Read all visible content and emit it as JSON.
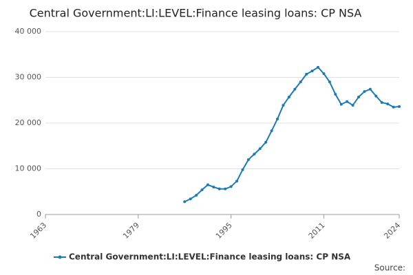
{
  "chart_data": {
    "type": "line",
    "title": "Central Government:LI:LEVEL:Finance leasing loans: CP NSA",
    "x": [
      1987,
      1988,
      1989,
      1990,
      1991,
      1992,
      1993,
      1994,
      1995,
      1996,
      1997,
      1998,
      1999,
      2000,
      2001,
      2002,
      2003,
      2004,
      2005,
      2006,
      2007,
      2008,
      2009,
      2010,
      2011,
      2012,
      2013,
      2014,
      2015,
      2016,
      2017,
      2018,
      2019,
      2020,
      2021,
      2022,
      2023,
      2024
    ],
    "series": [
      {
        "name": "Central Government:LI:LEVEL:Finance leasing loans: CP NSA",
        "color": "#1a7ab8",
        "values": [
          2800,
          3400,
          4200,
          5400,
          6500,
          6000,
          5600,
          5600,
          6100,
          7300,
          9800,
          12000,
          13200,
          14400,
          15800,
          18300,
          20900,
          23900,
          25700,
          27400,
          29000,
          30700,
          31400,
          32200,
          30800,
          29000,
          26300,
          24100,
          24700,
          23900,
          25700,
          26900,
          27400,
          25900,
          24500,
          24200,
          23500,
          23600
        ]
      }
    ],
    "xlim": [
      1963,
      2024
    ],
    "xticks": [
      1963,
      1979,
      1995,
      2011,
      2024
    ],
    "ylim": [
      0,
      40000
    ],
    "yticks": [
      0,
      {
        "value": 10000,
        "label": "10 000"
      },
      {
        "value": 20000,
        "label": "20 000"
      },
      {
        "value": 30000,
        "label": "30 000"
      },
      {
        "value": 40000,
        "label": "40 000"
      }
    ],
    "grid": true,
    "source": "Source:"
  }
}
